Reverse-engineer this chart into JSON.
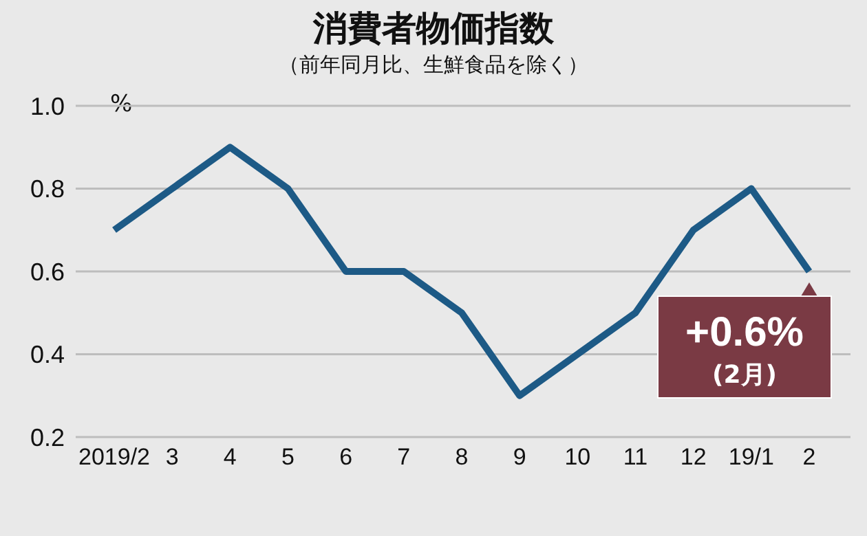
{
  "chart_data": {
    "type": "line",
    "title": "消費者物価指数",
    "subtitle": "（前年同月比、生鮮食品を除く）",
    "ylabel": "%",
    "categories": [
      "2019/2",
      "3",
      "4",
      "5",
      "6",
      "7",
      "8",
      "9",
      "10",
      "11",
      "12",
      "19/1",
      "2"
    ],
    "series": [
      {
        "color": "#1d5a86",
        "values": [
          0.7,
          0.8,
          0.9,
          0.8,
          0.6,
          0.6,
          0.5,
          0.3,
          0.4,
          0.5,
          0.7,
          0.8,
          0.6
        ]
      }
    ],
    "ylim": [
      0.2,
      1.0
    ],
    "yticks": [
      0.2,
      0.4,
      0.6,
      0.8,
      {
        "value": 1.0,
        "label": "1.0"
      }
    ],
    "grid": "y",
    "marker": "none",
    "line_style": "solid",
    "annotations": [
      {
        "text": "+0.6%\n(2月)",
        "x": "2",
        "y": 0.6
      }
    ]
  }
}
